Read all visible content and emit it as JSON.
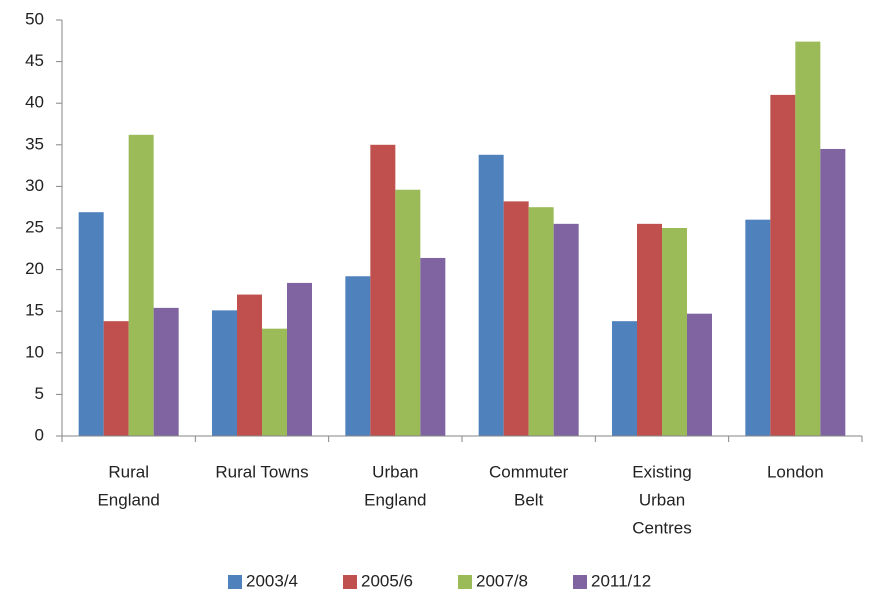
{
  "chart_data": {
    "type": "bar",
    "categories": [
      [
        "Rural",
        "England"
      ],
      [
        "Rural Towns"
      ],
      [
        "Urban",
        "England"
      ],
      [
        "Commuter",
        "Belt"
      ],
      [
        "Existing",
        "Urban",
        "Centres"
      ],
      [
        "London"
      ]
    ],
    "series": [
      {
        "name": "2003/4",
        "color": "#4f81bd",
        "values": [
          26.9,
          15.1,
          19.2,
          33.8,
          13.8,
          26.0
        ]
      },
      {
        "name": "2005/6",
        "color": "#c0504d",
        "values": [
          13.8,
          17.0,
          35.0,
          28.2,
          25.5,
          41.0
        ]
      },
      {
        "name": "2007/8",
        "color": "#9bbb59",
        "values": [
          36.2,
          12.9,
          29.6,
          27.5,
          25.0,
          47.4
        ]
      },
      {
        "name": "2011/12",
        "color": "#8064a2",
        "values": [
          15.4,
          18.4,
          21.4,
          25.5,
          14.7,
          34.5
        ]
      }
    ],
    "ylim": [
      0,
      50
    ],
    "yticks": [
      0,
      5,
      10,
      15,
      20,
      25,
      30,
      35,
      40,
      45,
      50
    ],
    "grid": false,
    "legend": "bottom"
  }
}
